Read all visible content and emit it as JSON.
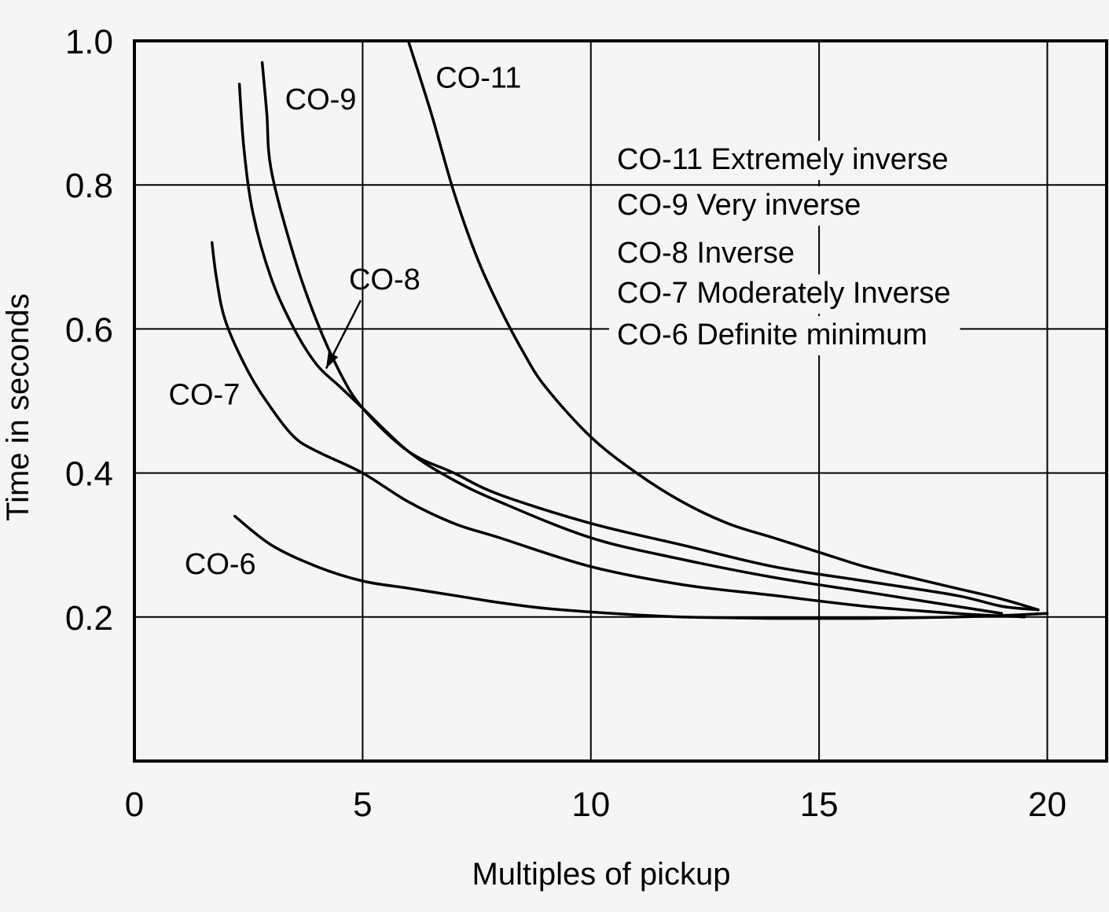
{
  "chart_data": {
    "type": "line",
    "xlabel": "Multiples of pickup",
    "ylabel": "Time in seconds",
    "xlim": [
      0,
      21.3
    ],
    "ylim": [
      0.0,
      1.0
    ],
    "xticks": [
      "0",
      "5",
      "10",
      "15",
      "20"
    ],
    "yticks": [
      "0.2",
      "0.4",
      "0.6",
      "0.8",
      "1.0"
    ],
    "grid": true,
    "background": "#f5f5f5",
    "line_color": "#000000",
    "series": [
      {
        "name": "CO-11",
        "x": [
          6.0,
          6.5,
          7.0,
          7.5,
          8.0,
          8.5,
          9.0,
          10.0,
          11.0,
          12.0,
          13.0,
          14.0,
          15.0,
          16.0,
          17.0,
          18.0,
          19.0,
          19.8
        ],
        "y": [
          1.0,
          0.9,
          0.79,
          0.7,
          0.63,
          0.57,
          0.52,
          0.45,
          0.4,
          0.36,
          0.33,
          0.31,
          0.29,
          0.27,
          0.255,
          0.24,
          0.225,
          0.21
        ]
      },
      {
        "name": "CO-9",
        "x": [
          2.8,
          2.9,
          3.0,
          3.5,
          4.0,
          4.5,
          5.0,
          6.0,
          7.0,
          8.0,
          10.0,
          12.0,
          14.0,
          16.0,
          18.0,
          19.0,
          19.8
        ],
        "y": [
          0.97,
          0.9,
          0.82,
          0.7,
          0.61,
          0.54,
          0.49,
          0.43,
          0.4,
          0.37,
          0.33,
          0.3,
          0.27,
          0.25,
          0.23,
          0.215,
          0.21
        ]
      },
      {
        "name": "CO-8",
        "x": [
          2.3,
          2.4,
          2.6,
          3.0,
          3.5,
          4.0,
          4.5,
          5.0,
          6.0,
          7.0,
          8.0,
          10.0,
          12.0,
          14.0,
          16.0,
          18.0,
          19.0
        ],
        "y": [
          0.94,
          0.85,
          0.76,
          0.67,
          0.6,
          0.55,
          0.52,
          0.49,
          0.43,
          0.39,
          0.36,
          0.31,
          0.28,
          0.255,
          0.235,
          0.215,
          0.205
        ]
      },
      {
        "name": "CO-7",
        "x": [
          1.7,
          1.8,
          2.0,
          2.5,
          3.0,
          3.5,
          4.0,
          5.0,
          6.0,
          7.0,
          8.0,
          10.0,
          12.0,
          14.0,
          16.0,
          18.0,
          19.5
        ],
        "y": [
          0.72,
          0.67,
          0.61,
          0.54,
          0.49,
          0.45,
          0.43,
          0.4,
          0.36,
          0.33,
          0.31,
          0.27,
          0.245,
          0.23,
          0.215,
          0.205,
          0.2
        ]
      },
      {
        "name": "CO-6",
        "x": [
          2.2,
          3.0,
          4.0,
          5.0,
          6.0,
          7.0,
          8.0,
          9.0,
          10.0,
          11.0,
          12.0,
          13.0,
          14.0,
          15.0,
          16.0,
          17.0,
          18.0,
          19.0,
          20.0
        ],
        "y": [
          0.34,
          0.3,
          0.27,
          0.25,
          0.24,
          0.23,
          0.22,
          0.212,
          0.207,
          0.203,
          0.2,
          0.199,
          0.198,
          0.198,
          0.198,
          0.199,
          0.2,
          0.202,
          0.205
        ]
      }
    ],
    "curve_labels": [
      {
        "text": "CO-11",
        "x": 6.6,
        "y": 0.935
      },
      {
        "text": "CO-9",
        "x": 3.3,
        "y": 0.905
      },
      {
        "text": "CO-8",
        "x": 4.7,
        "y": 0.655
      },
      {
        "text": "CO-7",
        "x": 0.75,
        "y": 0.495
      },
      {
        "text": "CO-6",
        "x": 1.1,
        "y": 0.26
      }
    ],
    "legend": {
      "position": "top-right",
      "entries": [
        "CO-11 Extremely inverse",
        "CO-9 Very inverse",
        "CO-8 Inverse",
        "CO-7 Moderately Inverse",
        "CO-6 Definite minimum"
      ]
    }
  }
}
